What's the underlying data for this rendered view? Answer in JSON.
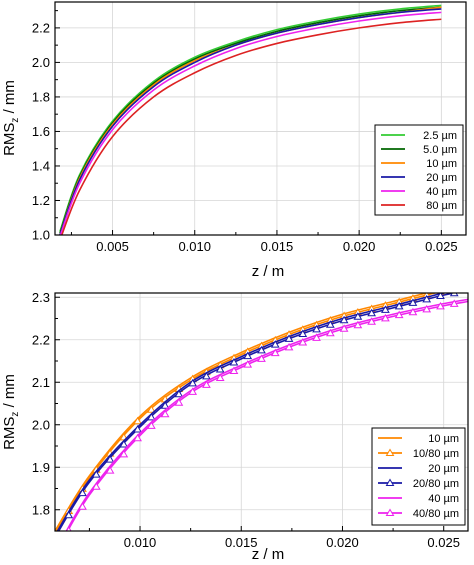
{
  "chart_data": [
    {
      "type": "line",
      "xlabel": "z / m",
      "ylabel": "RMS",
      "ylabel_sub": "z",
      "ylabel_unit": " / mm",
      "xlim": [
        0.0015,
        0.0265
      ],
      "ylim": [
        1.0,
        2.35
      ],
      "xticks": [
        0.005,
        0.01,
        0.015,
        0.02,
        0.025
      ],
      "xtick_labels": [
        "0.005",
        "0.010",
        "0.015",
        "0.020",
        "0.025"
      ],
      "yticks": [
        1.0,
        1.2,
        1.4,
        1.6,
        1.8,
        2.0,
        2.2
      ],
      "ytick_labels": [
        "1.0",
        "1.2",
        "1.4",
        "1.6",
        "1.8",
        "2.0",
        "2.2"
      ],
      "grid": true,
      "legend_position": "right",
      "x": [
        0.0018,
        0.003,
        0.005,
        0.0075,
        0.01,
        0.0125,
        0.015,
        0.0175,
        0.02,
        0.0225,
        0.025
      ],
      "series": [
        {
          "name": "2.5 µm",
          "color": "#33cc33",
          "values": [
            1.02,
            1.35,
            1.66,
            1.89,
            2.03,
            2.12,
            2.19,
            2.24,
            2.28,
            2.31,
            2.33
          ]
        },
        {
          "name": "5.0 µm",
          "color": "#006600",
          "values": [
            1.01,
            1.34,
            1.65,
            1.88,
            2.02,
            2.11,
            2.18,
            2.23,
            2.27,
            2.3,
            2.32
          ]
        },
        {
          "name": "10 µm",
          "color": "#ff8800",
          "values": [
            1.0,
            1.33,
            1.64,
            1.87,
            2.01,
            2.1,
            2.17,
            2.22,
            2.26,
            2.29,
            2.32
          ]
        },
        {
          "name": "20 µm",
          "color": "#1a1aa6",
          "values": [
            1.0,
            1.32,
            1.63,
            1.86,
            2.0,
            2.1,
            2.17,
            2.22,
            2.26,
            2.29,
            2.31
          ]
        },
        {
          "name": "40 µm",
          "color": "#ee22ee",
          "values": [
            0.99,
            1.3,
            1.61,
            1.84,
            1.98,
            2.08,
            2.15,
            2.2,
            2.24,
            2.27,
            2.29
          ]
        },
        {
          "name": "80 µm",
          "color": "#dd2222",
          "values": [
            0.97,
            1.26,
            1.57,
            1.8,
            1.94,
            2.04,
            2.11,
            2.16,
            2.2,
            2.23,
            2.25
          ]
        }
      ]
    },
    {
      "type": "line",
      "xlabel": "z / m",
      "ylabel": "RMS",
      "ylabel_sub": "z",
      "ylabel_unit": " / mm",
      "xlim": [
        0.0058,
        0.0262
      ],
      "ylim": [
        1.75,
        2.31
      ],
      "xticks": [
        0.01,
        0.015,
        0.02,
        0.025
      ],
      "xtick_labels": [
        "0.010",
        "0.015",
        "0.020",
        "0.025"
      ],
      "yticks": [
        1.8,
        1.9,
        2.0,
        2.1,
        2.2,
        2.3
      ],
      "ytick_labels": [
        "1.8",
        "1.9",
        "2.0",
        "2.1",
        "2.2",
        "2.3"
      ],
      "grid": true,
      "legend_position": "bottom-right",
      "x": [
        0.0058,
        0.0075,
        0.01,
        0.0125,
        0.015,
        0.0175,
        0.02,
        0.0225,
        0.025,
        0.0262
      ],
      "series": [
        {
          "name": "10 µm",
          "color": "#ff8800",
          "marker": "none",
          "values": [
            1.75,
            1.88,
            2.02,
            2.11,
            2.17,
            2.22,
            2.26,
            2.29,
            2.32,
            2.33
          ]
        },
        {
          "name": "10/80 µm",
          "color": "#ff8800",
          "marker": "triangle",
          "values": [
            1.745,
            1.875,
            2.015,
            2.105,
            2.165,
            2.215,
            2.255,
            2.285,
            2.315,
            2.325
          ]
        },
        {
          "name": "20 µm",
          "color": "#1a1aa6",
          "marker": "none",
          "values": [
            1.74,
            1.87,
            2.0,
            2.1,
            2.16,
            2.21,
            2.25,
            2.28,
            2.31,
            2.32
          ]
        },
        {
          "name": "20/80 µm",
          "color": "#1a1aa6",
          "marker": "triangle",
          "values": [
            1.735,
            1.865,
            1.995,
            2.095,
            2.155,
            2.205,
            2.245,
            2.275,
            2.305,
            2.315
          ]
        },
        {
          "name": "40 µm",
          "color": "#ee22ee",
          "marker": "none",
          "values": [
            1.7,
            1.84,
            1.98,
            2.08,
            2.14,
            2.19,
            2.23,
            2.26,
            2.285,
            2.295
          ]
        },
        {
          "name": "40/80 µm",
          "color": "#ee22ee",
          "marker": "triangle",
          "values": [
            1.695,
            1.835,
            1.975,
            2.075,
            2.135,
            2.185,
            2.225,
            2.255,
            2.28,
            2.29
          ]
        }
      ]
    }
  ]
}
